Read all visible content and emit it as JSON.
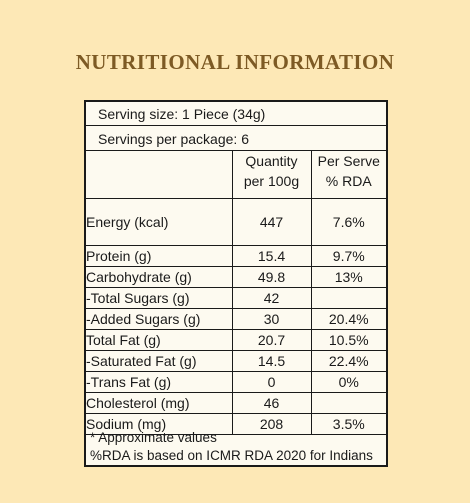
{
  "title": "NUTRITIONAL INFORMATION",
  "serving_size": "Serving size: 1 Piece (34g)",
  "servings_per_package": "Servings per package: 6",
  "columns": {
    "quantity_line1": "Quantity",
    "quantity_line2": "per 100g",
    "rda_line1": "Per Serve",
    "rda_line2": "% RDA"
  },
  "rows": [
    {
      "name": "Energy (kcal)",
      "qty": "447",
      "rda": "7.6%"
    },
    {
      "name": "Protein (g)",
      "qty": "15.4",
      "rda": "9.7%"
    },
    {
      "name": "Carbohydrate (g)",
      "qty": "49.8",
      "rda": "13%"
    },
    {
      "name": "-Total Sugars (g)",
      "qty": "42",
      "rda": ""
    },
    {
      "name": "-Added Sugars (g)",
      "qty": "30",
      "rda": "20.4%"
    },
    {
      "name": "Total Fat (g)",
      "qty": "20.7",
      "rda": "10.5%"
    },
    {
      "name": "-Saturated Fat (g)",
      "qty": "14.5",
      "rda": "22.4%"
    },
    {
      "name": "-Trans Fat (g)",
      "qty": "0",
      "rda": "0%"
    },
    {
      "name": "Cholesterol (mg)",
      "qty": "46",
      "rda": ""
    },
    {
      "name": "Sodium (mg)",
      "qty": "208",
      "rda": "3.5%"
    }
  ],
  "footnote_1": "* Approximate values",
  "footnote_2": "%RDA is based on ICMR RDA 2020 for Indians"
}
